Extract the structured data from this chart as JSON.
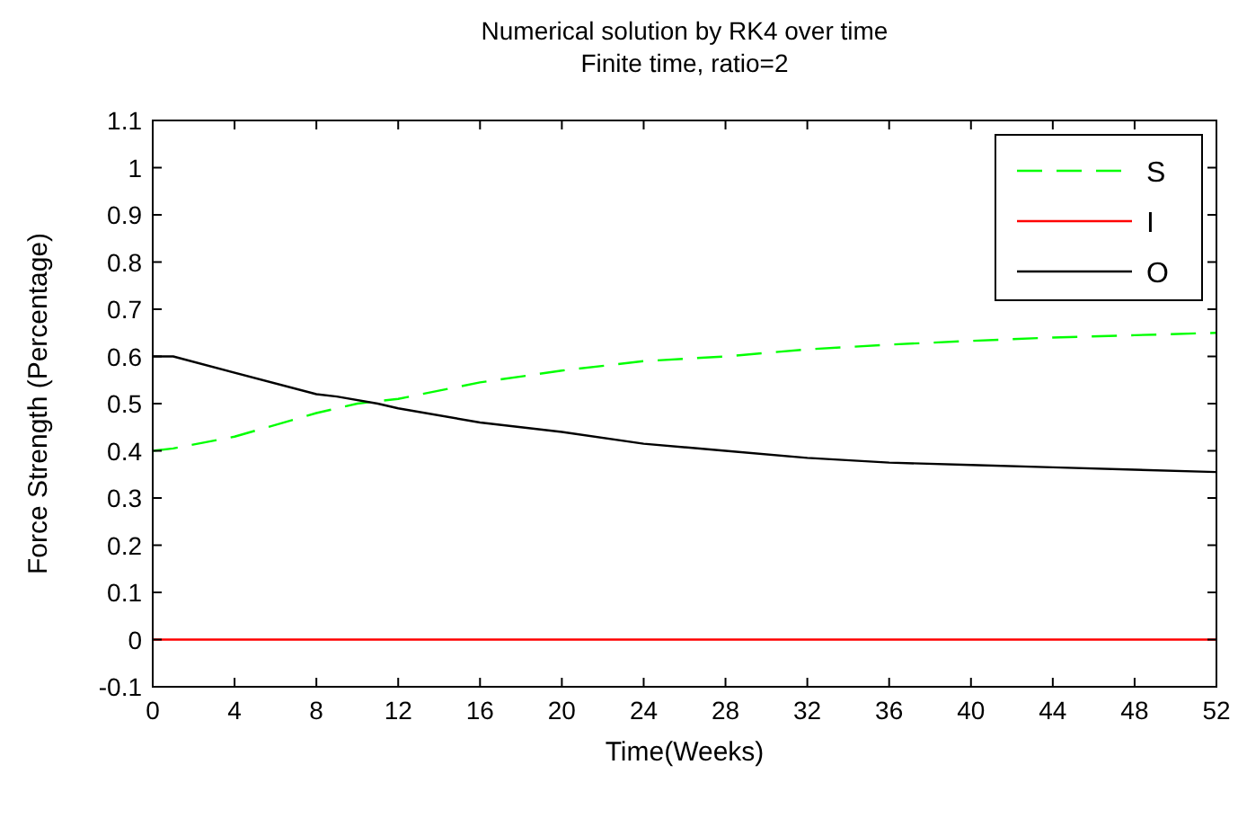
{
  "chart_data": {
    "type": "line",
    "title": "Numerical solution by RK4 over time",
    "subtitle": "Finite time, ratio=2",
    "xlabel": "Time(Weeks)",
    "ylabel": "Force Strength (Percentage)",
    "xlim": [
      0,
      52
    ],
    "xticks": [
      0,
      4,
      8,
      12,
      16,
      20,
      24,
      28,
      32,
      36,
      40,
      44,
      48,
      52
    ],
    "ylim": [
      -0.1,
      1.1
    ],
    "yticks": [
      -0.1,
      0,
      0.1,
      0.2,
      0.3,
      0.4,
      0.5,
      0.6,
      0.7,
      0.8,
      0.9,
      1,
      1.1
    ],
    "grid": false,
    "legend": "top right",
    "marker": "none",
    "series": [
      {
        "name": "S",
        "color": "#00ff00",
        "line_style": "dashed",
        "x": [
          0,
          1,
          4,
          8,
          10,
          12,
          16,
          20,
          24,
          28,
          32,
          36,
          40,
          44,
          48,
          52
        ],
        "values": [
          0.4,
          0.405,
          0.43,
          0.48,
          0.5,
          0.51,
          0.545,
          0.57,
          0.59,
          0.6,
          0.615,
          0.625,
          0.633,
          0.64,
          0.645,
          0.65
        ]
      },
      {
        "name": "I",
        "color": "#ff0000",
        "line_style": "solid",
        "x": [
          0,
          52
        ],
        "values": [
          0,
          0
        ]
      },
      {
        "name": "O",
        "color": "#000000",
        "line_style": "solid",
        "x": [
          0,
          1,
          8,
          9,
          11,
          12,
          16,
          20,
          24,
          28,
          32,
          36,
          40,
          44,
          48,
          52
        ],
        "values": [
          0.6,
          0.6,
          0.52,
          0.515,
          0.5,
          0.49,
          0.46,
          0.44,
          0.415,
          0.4,
          0.385,
          0.375,
          0.37,
          0.365,
          0.36,
          0.355
        ]
      }
    ]
  }
}
